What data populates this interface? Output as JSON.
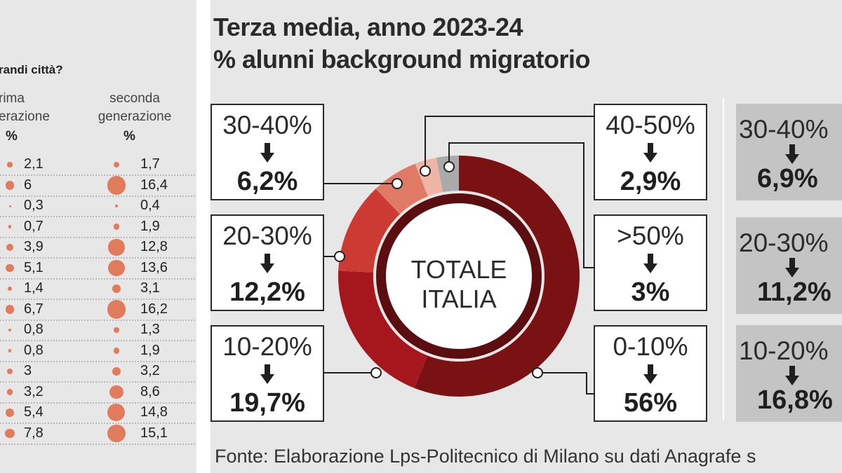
{
  "left_table": {
    "title": "randi città?",
    "col1_header": "rima\nerazione",
    "col2_header": "seconda\ngenerazione",
    "col1_unit": "%",
    "col2_unit": "%",
    "dot_color": "#e07b5c",
    "rows": [
      {
        "prima": "2,1",
        "seconda": "1,7"
      },
      {
        "prima": "6",
        "seconda": "16,4"
      },
      {
        "prima": "0,3",
        "seconda": "0,4"
      },
      {
        "prima": "0,7",
        "seconda": "1,9"
      },
      {
        "prima": "3,9",
        "seconda": "12,8"
      },
      {
        "prima": "5,1",
        "seconda": "13,6"
      },
      {
        "prima": "1,4",
        "seconda": "3,1"
      },
      {
        "prima": "6,7",
        "seconda": "16,2"
      },
      {
        "prima": "0,8",
        "seconda": "1,3"
      },
      {
        "prima": "0,8",
        "seconda": "1,9"
      },
      {
        "prima": "3",
        "seconda": "3,2"
      },
      {
        "prima": "3,2",
        "seconda": "8,6"
      },
      {
        "prima": "5,4",
        "seconda": "14,8"
      },
      {
        "prima": "7,8",
        "seconda": "15,1"
      }
    ]
  },
  "main": {
    "title_line1": "Terza media, anno 2023-24",
    "title_line2": "% alunni background migratorio",
    "center_label_line1": "TOTALE",
    "center_label_line2": "ITALIA",
    "boxes": {
      "b30_40": {
        "range": "30-40%",
        "value": "6,2%"
      },
      "b20_30": {
        "range": "20-30%",
        "value": "12,2%"
      },
      "b10_20": {
        "range": "10-20%",
        "value": "19,7%"
      },
      "b40_50": {
        "range": "40-50%",
        "value": "2,9%"
      },
      "b50": {
        "range": ">50%",
        "value": "3%"
      },
      "b0_10": {
        "range": "0-10%",
        "value": "56%"
      }
    },
    "side_boxes": {
      "s30_40": {
        "range": "30-40%",
        "value": "6,9%"
      },
      "s20_30": {
        "range": "20-30%",
        "value": "11,2%"
      },
      "s10_20": {
        "range": "10-20%",
        "value": "16,8%"
      }
    },
    "source": "Fonte: Elaborazione Lps-Politecnico di Milano su dati Anagrafe s"
  },
  "chart_data": {
    "type": "pie",
    "title": "Terza media, anno 2023-24",
    "subtitle": "% alunni background migratorio",
    "categories": [
      "0-10%",
      "10-20%",
      "20-30%",
      "30-40%",
      "40-50%",
      ">50%"
    ],
    "values": [
      56,
      19.7,
      12.2,
      6.2,
      2.9,
      3
    ],
    "colors": [
      "#7a1214",
      "#a5161d",
      "#cc3b33",
      "#de7a66",
      "#efb5a4",
      "#aaaaaa"
    ]
  }
}
